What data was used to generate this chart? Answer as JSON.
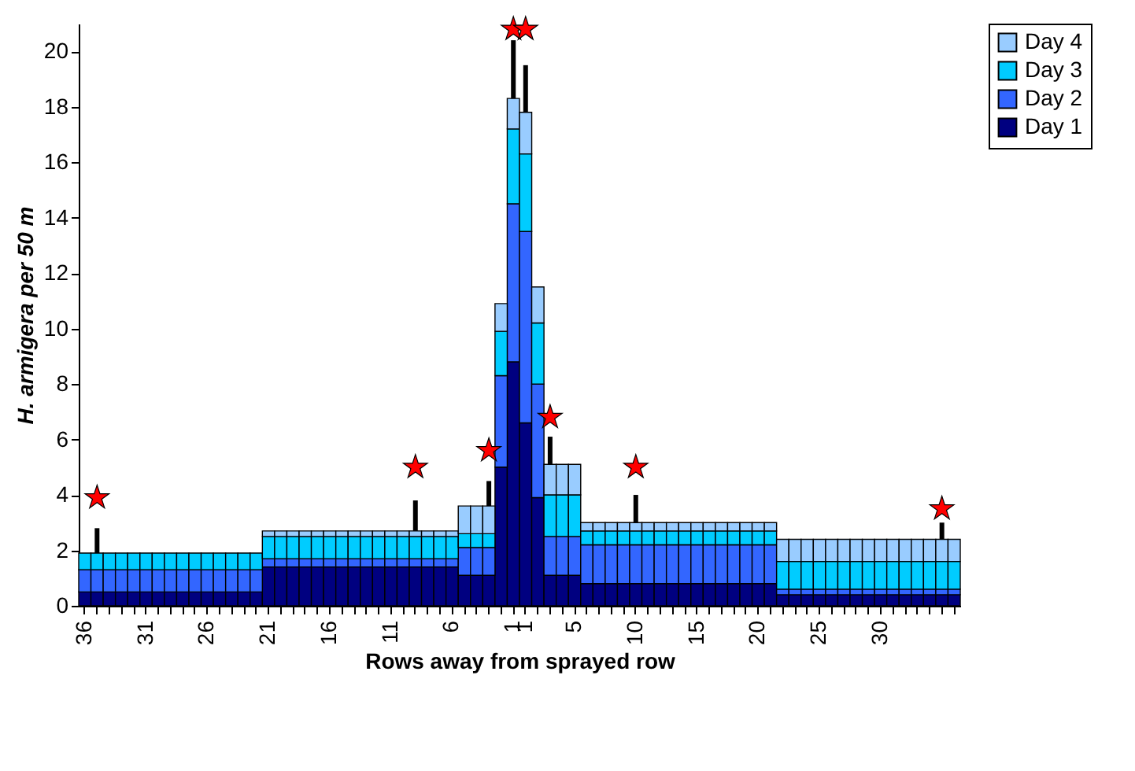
{
  "chart_data": {
    "type": "bar",
    "stacked": true,
    "xlabel": "Rows away from sprayed row",
    "ylabel": "H. armigera per 50 m",
    "categories": [
      "36",
      null,
      null,
      null,
      null,
      "31",
      null,
      null,
      null,
      null,
      "26",
      null,
      null,
      null,
      null,
      "21",
      null,
      null,
      null,
      null,
      "16",
      null,
      null,
      null,
      null,
      "11",
      null,
      null,
      null,
      null,
      "6",
      null,
      null,
      null,
      null,
      "1",
      "1",
      null,
      null,
      null,
      "5",
      null,
      null,
      null,
      null,
      "10",
      null,
      null,
      null,
      null,
      "15",
      null,
      null,
      null,
      null,
      "20",
      null,
      null,
      null,
      null,
      "25",
      null,
      null,
      null,
      null,
      "30",
      null,
      null,
      null,
      null,
      null,
      null
    ],
    "ylim": [
      0,
      21
    ],
    "yticks": [
      0,
      2,
      4,
      6,
      8,
      10,
      12,
      14,
      16,
      18,
      20
    ],
    "grid": false,
    "legend": "right",
    "series": [
      {
        "name": "Day 1",
        "color": "#000080",
        "values": [
          0.5,
          0.5,
          0.5,
          0.5,
          0.5,
          0.5,
          0.5,
          0.5,
          0.5,
          0.5,
          0.5,
          0.5,
          0.5,
          0.5,
          0.5,
          1.4,
          1.4,
          1.4,
          1.4,
          1.4,
          1.4,
          1.4,
          1.4,
          1.4,
          1.4,
          1.4,
          1.4,
          1.4,
          1.4,
          1.4,
          1.4,
          1.1,
          1.1,
          1.1,
          5.0,
          8.8,
          6.6,
          3.9,
          1.1,
          1.1,
          1.1,
          0.8,
          0.8,
          0.8,
          0.8,
          0.8,
          0.8,
          0.8,
          0.8,
          0.8,
          0.8,
          0.8,
          0.8,
          0.8,
          0.8,
          0.8,
          0.8,
          0.4,
          0.4,
          0.4,
          0.4,
          0.4,
          0.4,
          0.4,
          0.4,
          0.4,
          0.4,
          0.4,
          0.4,
          0.4,
          0.4,
          0.4
        ]
      },
      {
        "name": "Day 2",
        "color": "#3366ff",
        "values": [
          0.8,
          0.8,
          0.8,
          0.8,
          0.8,
          0.8,
          0.8,
          0.8,
          0.8,
          0.8,
          0.8,
          0.8,
          0.8,
          0.8,
          0.8,
          0.3,
          0.3,
          0.3,
          0.3,
          0.3,
          0.3,
          0.3,
          0.3,
          0.3,
          0.3,
          0.3,
          0.3,
          0.3,
          0.3,
          0.3,
          0.3,
          1.0,
          1.0,
          1.0,
          3.3,
          5.7,
          6.9,
          4.1,
          1.4,
          1.4,
          1.4,
          1.4,
          1.4,
          1.4,
          1.4,
          1.4,
          1.4,
          1.4,
          1.4,
          1.4,
          1.4,
          1.4,
          1.4,
          1.4,
          1.4,
          1.4,
          1.4,
          0.2,
          0.2,
          0.2,
          0.2,
          0.2,
          0.2,
          0.2,
          0.2,
          0.2,
          0.2,
          0.2,
          0.2,
          0.2,
          0.2,
          0.2
        ]
      },
      {
        "name": "Day 3",
        "color": "#00ccff",
        "values": [
          0.6,
          0.6,
          0.6,
          0.6,
          0.6,
          0.6,
          0.6,
          0.6,
          0.6,
          0.6,
          0.6,
          0.6,
          0.6,
          0.6,
          0.6,
          0.8,
          0.8,
          0.8,
          0.8,
          0.8,
          0.8,
          0.8,
          0.8,
          0.8,
          0.8,
          0.8,
          0.8,
          0.8,
          0.8,
          0.8,
          0.8,
          0.5,
          0.5,
          0.5,
          1.6,
          2.7,
          2.8,
          2.2,
          1.5,
          1.5,
          1.5,
          0.5,
          0.5,
          0.5,
          0.5,
          0.5,
          0.5,
          0.5,
          0.5,
          0.5,
          0.5,
          0.5,
          0.5,
          0.5,
          0.5,
          0.5,
          0.5,
          1.0,
          1.0,
          1.0,
          1.0,
          1.0,
          1.0,
          1.0,
          1.0,
          1.0,
          1.0,
          1.0,
          1.0,
          1.0,
          1.0,
          1.0
        ],
        "errors": [
          null,
          [
            1.9,
            2.8
          ],
          null,
          null,
          null,
          null,
          null,
          null,
          null,
          null,
          null,
          null,
          null,
          null,
          null,
          null,
          null,
          null,
          null,
          null,
          null,
          null,
          null,
          null,
          null,
          null,
          null,
          null,
          null,
          null,
          null,
          null,
          null,
          null,
          null,
          null,
          null,
          null,
          null,
          null,
          null,
          null,
          null,
          null,
          null,
          null,
          null,
          null,
          null,
          null,
          null,
          null,
          null,
          null,
          null,
          null,
          null,
          null,
          null,
          null,
          null,
          null,
          null,
          null,
          null,
          null,
          null,
          null,
          null,
          null,
          null,
          null
        ]
      },
      {
        "name": "Day 4",
        "color": "#99ccff",
        "values": [
          null,
          null,
          null,
          null,
          null,
          null,
          null,
          null,
          null,
          null,
          null,
          null,
          null,
          null,
          null,
          0.2,
          0.2,
          0.2,
          0.2,
          0.2,
          0.2,
          0.2,
          0.2,
          0.2,
          0.2,
          0.2,
          0.2,
          0.2,
          0.2,
          0.2,
          0.2,
          1.0,
          1.0,
          1.0,
          1.0,
          1.1,
          1.5,
          1.3,
          1.1,
          1.1,
          1.1,
          0.3,
          0.3,
          0.3,
          0.3,
          0.3,
          0.3,
          0.3,
          0.3,
          0.3,
          0.3,
          0.3,
          0.3,
          0.3,
          0.3,
          0.3,
          0.3,
          0.8,
          0.8,
          0.8,
          0.8,
          0.8,
          0.8,
          0.8,
          0.8,
          0.8,
          0.8,
          0.8,
          0.8,
          0.8,
          0.8,
          0.8
        ],
        "errors": [
          null,
          null,
          null,
          null,
          null,
          null,
          null,
          null,
          null,
          null,
          null,
          null,
          null,
          null,
          null,
          null,
          null,
          null,
          null,
          null,
          null,
          null,
          null,
          null,
          null,
          null,
          null,
          [
            2.7,
            3.8
          ],
          null,
          null,
          null,
          null,
          null,
          [
            3.6,
            4.5
          ],
          null,
          [
            18.3,
            20.4
          ],
          [
            17.8,
            19.5
          ],
          null,
          [
            5.1,
            6.1
          ],
          null,
          null,
          null,
          null,
          null,
          null,
          [
            3.0,
            4.0
          ],
          null,
          null,
          null,
          null,
          null,
          null,
          null,
          null,
          null,
          null,
          null,
          null,
          null,
          null,
          null,
          null,
          null,
          null,
          null,
          null,
          null,
          null,
          null,
          null,
          [
            2.4,
            3.0
          ],
          null
        ]
      },
      {
        "type": "scatter",
        "marker": "star",
        "color": "#ff0000",
        "values": [
          null,
          3.9,
          null,
          null,
          null,
          null,
          null,
          null,
          null,
          null,
          null,
          null,
          null,
          null,
          null,
          null,
          null,
          null,
          null,
          null,
          null,
          null,
          null,
          null,
          null,
          null,
          null,
          5.0,
          null,
          null,
          null,
          null,
          null,
          5.6,
          null,
          20.8,
          20.8,
          null,
          6.8,
          null,
          null,
          null,
          null,
          null,
          null,
          5.0,
          null,
          null,
          null,
          null,
          null,
          null,
          null,
          null,
          null,
          null,
          null,
          null,
          null,
          null,
          null,
          null,
          null,
          null,
          null,
          null,
          null,
          null,
          null,
          null,
          3.5,
          null
        ]
      }
    ]
  }
}
